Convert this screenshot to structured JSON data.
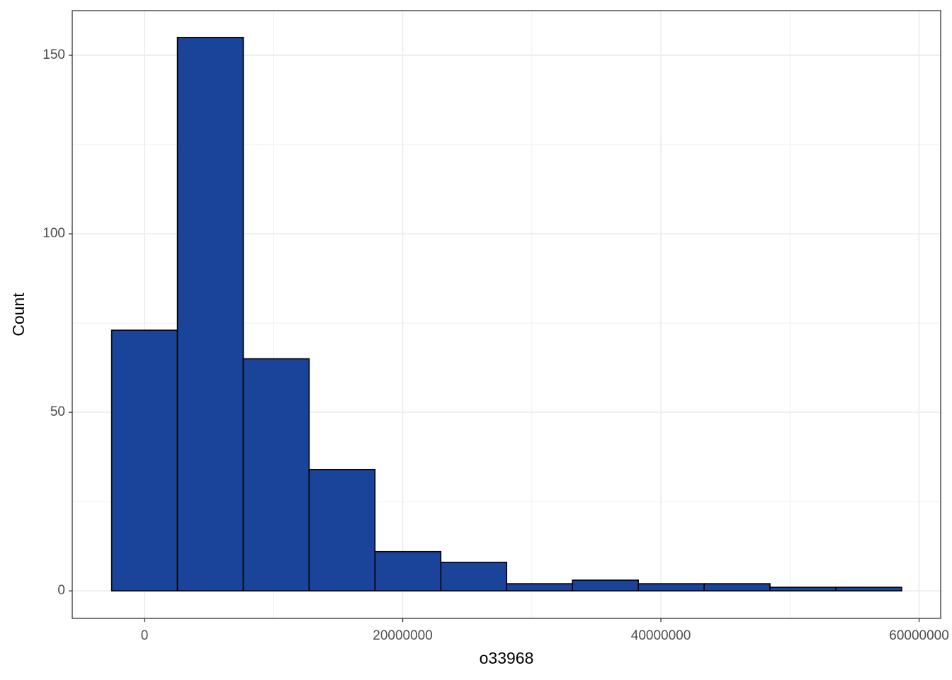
{
  "chart_data": {
    "type": "histogram",
    "x_label": "o33968",
    "y_label": "Count",
    "bins": [
      -2550000,
      2550000,
      7650000,
      12750000,
      17850000,
      22950000,
      28050000,
      33150000,
      38250000,
      43350000,
      48450000,
      53550000,
      58650000
    ],
    "counts": [
      73,
      155,
      65,
      34,
      11,
      8,
      2,
      3,
      2,
      2,
      1,
      1
    ],
    "color": "#19449a",
    "edge_color": "#000000",
    "xlim": [
      -5600000,
      61670000
    ],
    "ylim": [
      -7.7,
      162.5
    ],
    "xticks": [
      0,
      20000000,
      40000000,
      60000000
    ],
    "yticks": [
      0,
      50,
      100,
      150
    ],
    "grid": true
  }
}
